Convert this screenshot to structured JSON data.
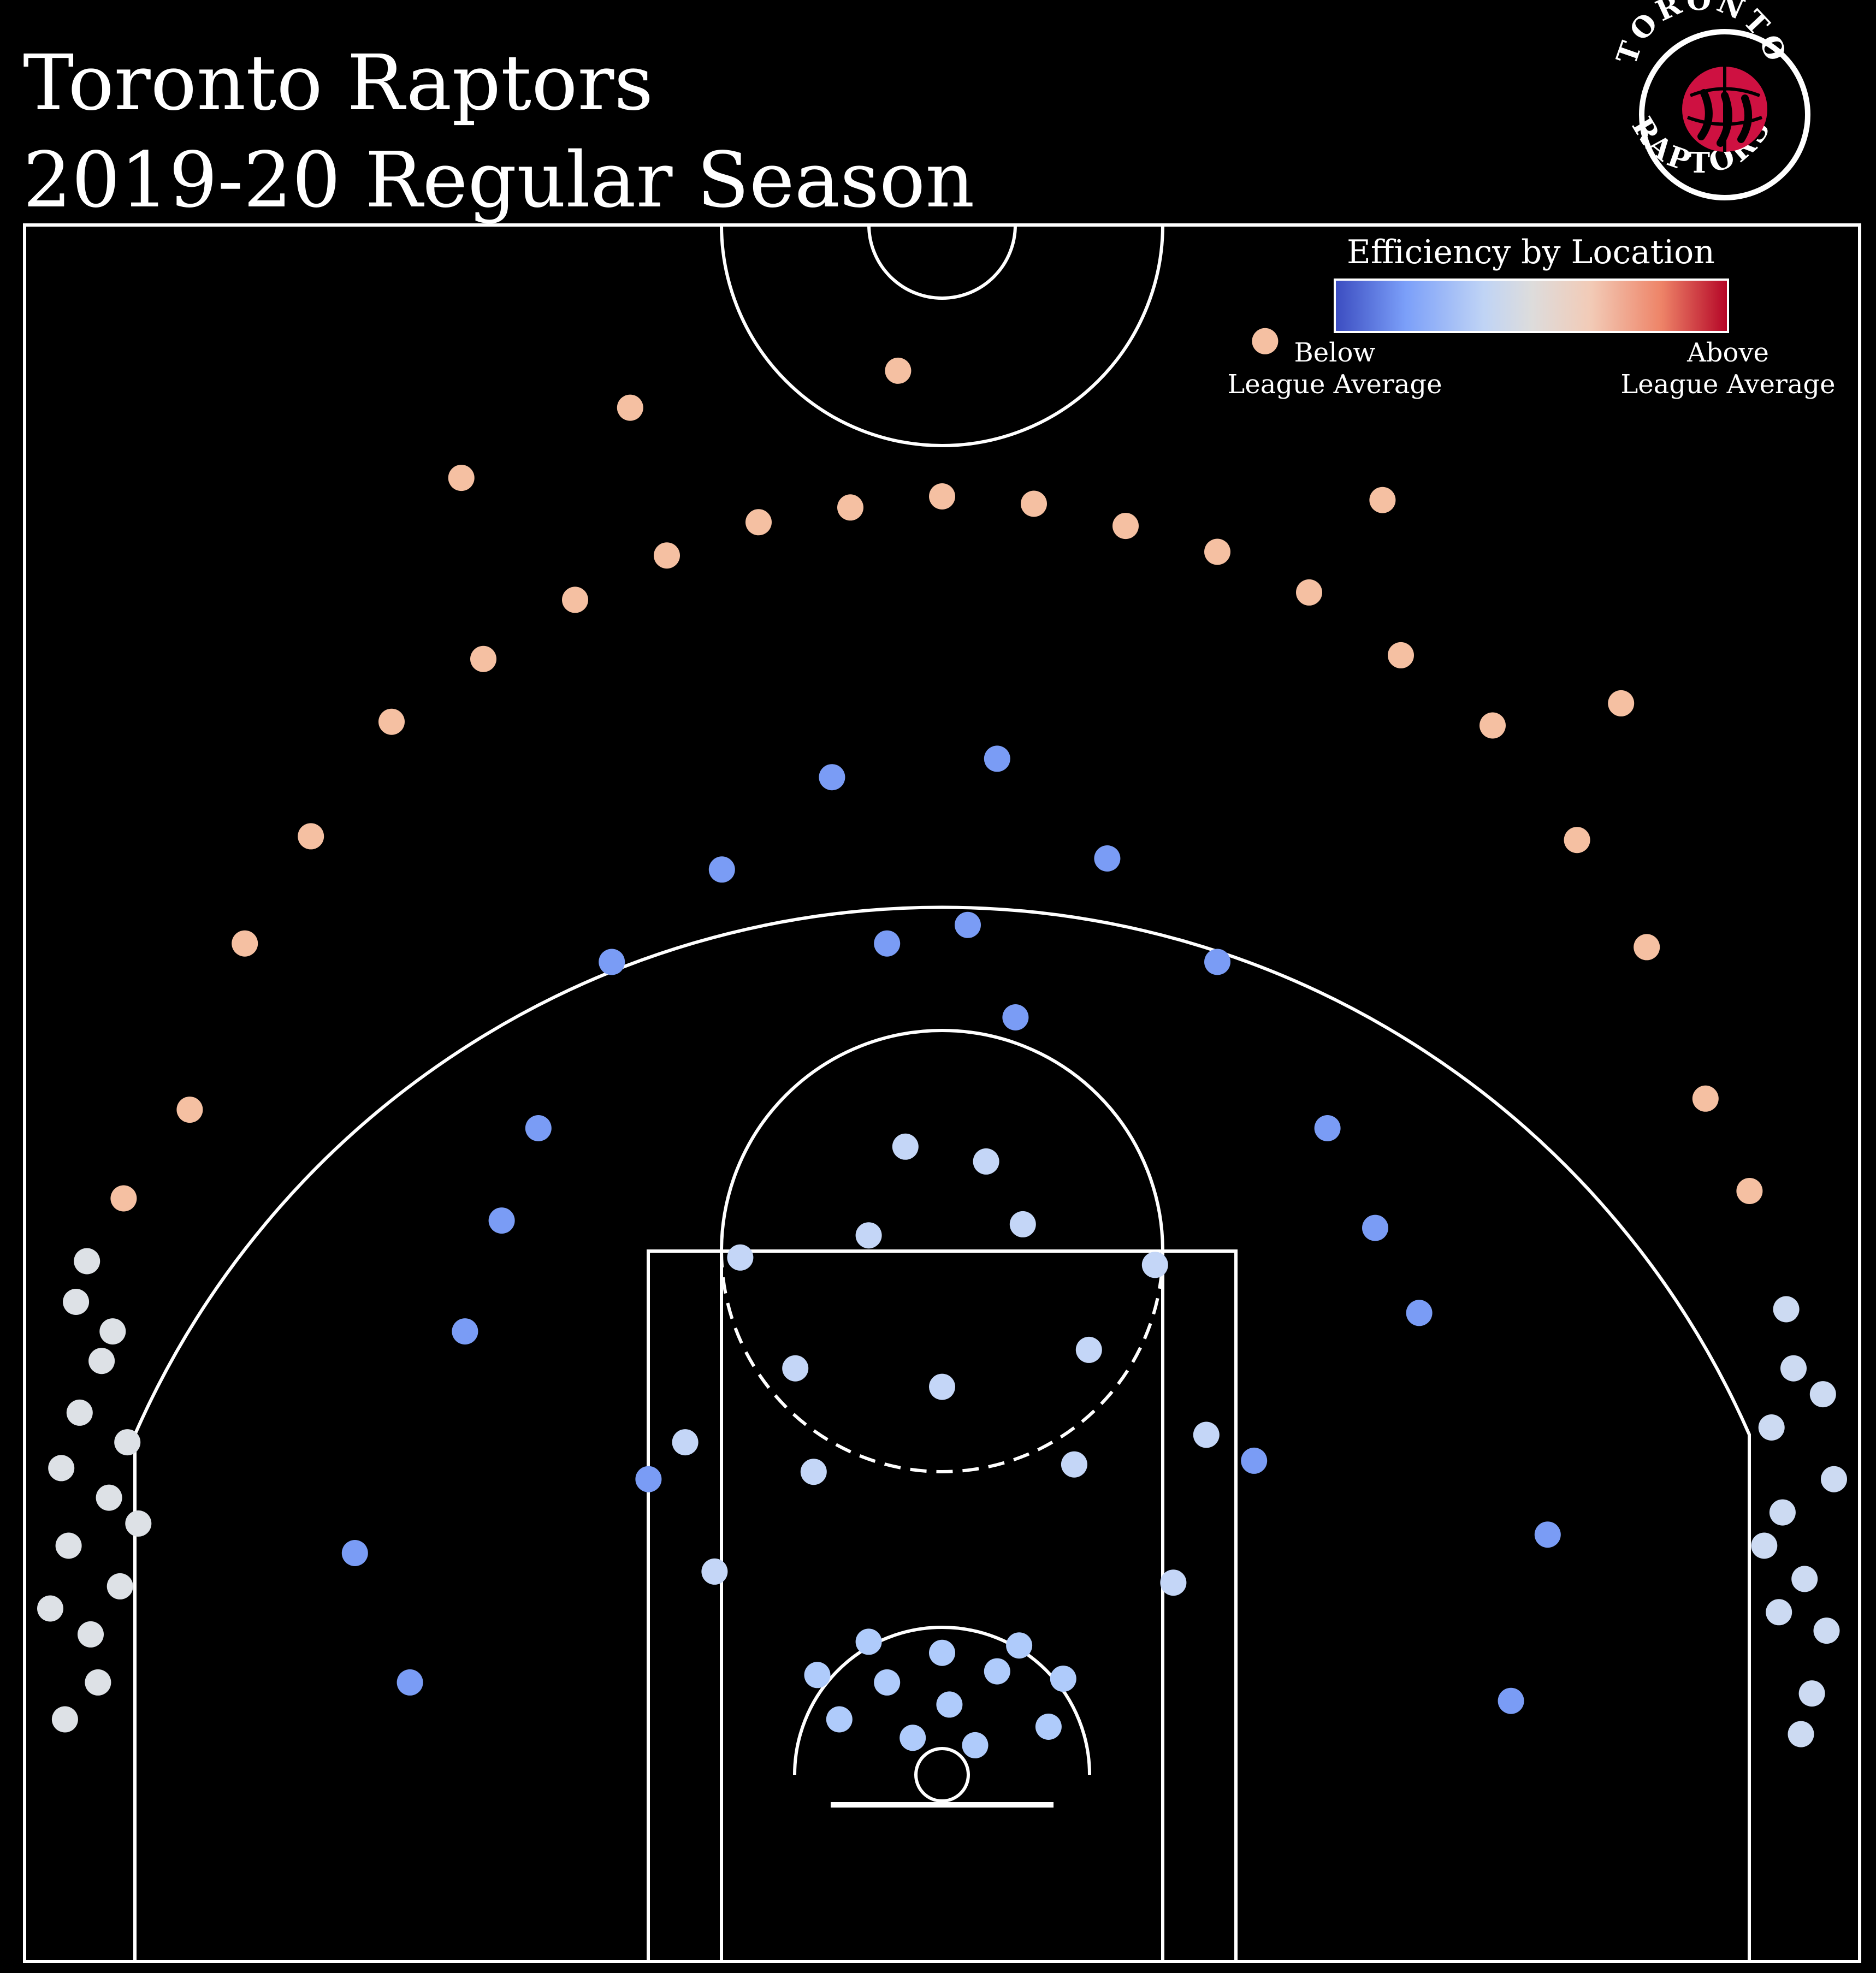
{
  "header": {
    "title": "Toronto Raptors",
    "subtitle": "2019-20 Regular Season"
  },
  "logo": {
    "top_text": "TORONTO",
    "bottom_text": "RAPTORS",
    "icon": "raptors-claw-basketball-icon",
    "colors": {
      "ring": "#000000",
      "ball": "#ce1141",
      "stroke": "#ffffff"
    }
  },
  "legend": {
    "title": "Efficiency by Location",
    "low_label_line1": "Below",
    "low_label_line2": "League Average",
    "high_label_line1": "Above",
    "high_label_line2": "League Average",
    "colormap": [
      "#3b4cc0",
      "#7b9ff9",
      "#c0d4f5",
      "#dddcdc",
      "#f2cbb7",
      "#ee8468",
      "#b40426"
    ]
  },
  "chart_data": {
    "type": "scatter",
    "x_unit": "court position (ft), basket at x=0",
    "y_unit": "distance from baseline (ft)",
    "xlim": [
      -25,
      25
    ],
    "ylim": [
      0,
      47
    ],
    "grid": false,
    "zones": [
      {
        "zone": "left-corner-three",
        "color": "#dde1e6",
        "relative_efficiency": "near-average"
      },
      {
        "zone": "right-corner-three",
        "color": "#ccdaf2",
        "relative_efficiency": "slightly-below"
      },
      {
        "zone": "above-break-three",
        "color": "#f5c0a2",
        "relative_efficiency": "above"
      },
      {
        "zone": "mid-range",
        "color": "#7a9cf5",
        "relative_efficiency": "below"
      },
      {
        "zone": "paint-non-ra",
        "color": "#c4d6f7",
        "relative_efficiency": "below"
      },
      {
        "zone": "restricted-area",
        "color": "#afcbfb",
        "relative_efficiency": "below"
      }
    ],
    "points": [
      {
        "x": -24.3,
        "y": 4.5,
        "zone": "left-corner-three"
      },
      {
        "x": -23.8,
        "y": 6.2,
        "zone": "left-corner-three"
      },
      {
        "x": -23.2,
        "y": 3.8,
        "zone": "left-corner-three"
      },
      {
        "x": -22.7,
        "y": 7.5,
        "zone": "left-corner-three"
      },
      {
        "x": -23.5,
        "y": 9.8,
        "zone": "left-corner-three"
      },
      {
        "x": -22.9,
        "y": 11.2,
        "zone": "left-corner-three"
      },
      {
        "x": -23.6,
        "y": 12.8,
        "zone": "left-corner-three"
      },
      {
        "x": -22.4,
        "y": 5.1,
        "zone": "left-corner-three"
      },
      {
        "x": -24.0,
        "y": 8.3,
        "zone": "left-corner-three"
      },
      {
        "x": -22.2,
        "y": 9.0,
        "zone": "left-corner-three"
      },
      {
        "x": -23.0,
        "y": 2.5,
        "zone": "left-corner-three"
      },
      {
        "x": -22.6,
        "y": 12.0,
        "zone": "left-corner-three"
      },
      {
        "x": -23.9,
        "y": 1.5,
        "zone": "left-corner-three"
      },
      {
        "x": -21.9,
        "y": 6.8,
        "zone": "left-corner-three"
      },
      {
        "x": -23.3,
        "y": 13.9,
        "zone": "left-corner-three"
      },
      {
        "x": 23.5,
        "y": 5.3,
        "zone": "right-corner-three"
      },
      {
        "x": 22.9,
        "y": 7.1,
        "zone": "right-corner-three"
      },
      {
        "x": 24.1,
        "y": 3.9,
        "zone": "right-corner-three"
      },
      {
        "x": 22.6,
        "y": 9.4,
        "zone": "right-corner-three"
      },
      {
        "x": 23.2,
        "y": 11.0,
        "zone": "right-corner-three"
      },
      {
        "x": 24.3,
        "y": 8.0,
        "zone": "right-corner-three"
      },
      {
        "x": 23.7,
        "y": 2.2,
        "zone": "right-corner-three"
      },
      {
        "x": 22.8,
        "y": 4.4,
        "zone": "right-corner-three"
      },
      {
        "x": 23.0,
        "y": 12.6,
        "zone": "right-corner-three"
      },
      {
        "x": 24.0,
        "y": 10.3,
        "zone": "right-corner-three"
      },
      {
        "x": 22.4,
        "y": 6.2,
        "zone": "right-corner-three"
      },
      {
        "x": 23.4,
        "y": 1.1,
        "zone": "right-corner-three"
      },
      {
        "x": -20.5,
        "y": 18.0,
        "zone": "above-break-three"
      },
      {
        "x": -19.0,
        "y": 22.5,
        "zone": "above-break-three"
      },
      {
        "x": -17.2,
        "y": 25.4,
        "zone": "above-break-three"
      },
      {
        "x": -15.0,
        "y": 28.5,
        "zone": "above-break-three"
      },
      {
        "x": -12.5,
        "y": 30.2,
        "zone": "above-break-three"
      },
      {
        "x": -10.0,
        "y": 31.8,
        "zone": "above-break-three"
      },
      {
        "x": -7.5,
        "y": 33.0,
        "zone": "above-break-three"
      },
      {
        "x": -5.0,
        "y": 33.9,
        "zone": "above-break-three"
      },
      {
        "x": -2.5,
        "y": 34.3,
        "zone": "above-break-three"
      },
      {
        "x": 0.0,
        "y": 34.6,
        "zone": "above-break-three"
      },
      {
        "x": 2.5,
        "y": 34.4,
        "zone": "above-break-three"
      },
      {
        "x": 5.0,
        "y": 33.8,
        "zone": "above-break-three"
      },
      {
        "x": 7.5,
        "y": 33.1,
        "zone": "above-break-three"
      },
      {
        "x": 10.0,
        "y": 32.0,
        "zone": "above-break-three"
      },
      {
        "x": 12.5,
        "y": 30.3,
        "zone": "above-break-three"
      },
      {
        "x": 15.0,
        "y": 28.4,
        "zone": "above-break-three"
      },
      {
        "x": 17.3,
        "y": 25.3,
        "zone": "above-break-three"
      },
      {
        "x": 19.2,
        "y": 22.4,
        "zone": "above-break-three"
      },
      {
        "x": 20.8,
        "y": 18.3,
        "zone": "above-break-three"
      },
      {
        "x": 22.0,
        "y": 15.8,
        "zone": "above-break-three"
      },
      {
        "x": -22.3,
        "y": 15.6,
        "zone": "above-break-three"
      },
      {
        "x": -13.1,
        "y": 35.1,
        "zone": "above-break-three"
      },
      {
        "x": -8.5,
        "y": 37.0,
        "zone": "above-break-three"
      },
      {
        "x": -1.2,
        "y": 38.0,
        "zone": "above-break-three"
      },
      {
        "x": 8.8,
        "y": 38.8,
        "zone": "above-break-three"
      },
      {
        "x": 12.0,
        "y": 34.5,
        "zone": "above-break-three"
      },
      {
        "x": 18.5,
        "y": 29.0,
        "zone": "above-break-three"
      },
      {
        "x": -13.0,
        "y": 12.0,
        "zone": "mid-range"
      },
      {
        "x": -11.0,
        "y": 17.5,
        "zone": "mid-range"
      },
      {
        "x": -9.0,
        "y": 22.0,
        "zone": "mid-range"
      },
      {
        "x": -6.0,
        "y": 24.5,
        "zone": "mid-range"
      },
      {
        "x": -3.0,
        "y": 27.0,
        "zone": "mid-range"
      },
      {
        "x": 1.5,
        "y": 27.5,
        "zone": "mid-range"
      },
      {
        "x": 4.5,
        "y": 24.8,
        "zone": "mid-range"
      },
      {
        "x": 7.5,
        "y": 22.0,
        "zone": "mid-range"
      },
      {
        "x": 10.5,
        "y": 17.5,
        "zone": "mid-range"
      },
      {
        "x": 13.0,
        "y": 12.5,
        "zone": "mid-range"
      },
      {
        "x": -16.0,
        "y": 6.0,
        "zone": "mid-range"
      },
      {
        "x": 16.5,
        "y": 6.5,
        "zone": "mid-range"
      },
      {
        "x": -14.5,
        "y": 2.5,
        "zone": "mid-range"
      },
      {
        "x": 15.5,
        "y": 2.0,
        "zone": "mid-range"
      },
      {
        "x": -8.0,
        "y": 8.0,
        "zone": "mid-range"
      },
      {
        "x": 8.5,
        "y": 8.5,
        "zone": "mid-range"
      },
      {
        "x": -12.0,
        "y": 15.0,
        "zone": "mid-range"
      },
      {
        "x": 11.8,
        "y": 14.8,
        "zone": "mid-range"
      },
      {
        "x": -1.5,
        "y": 22.5,
        "zone": "mid-range"
      },
      {
        "x": 2.0,
        "y": 20.5,
        "zone": "mid-range"
      },
      {
        "x": 0.7,
        "y": 23.0,
        "zone": "mid-range"
      },
      {
        "x": -4.0,
        "y": 11.0,
        "zone": "paint-non-ra"
      },
      {
        "x": 4.0,
        "y": 11.5,
        "zone": "paint-non-ra"
      },
      {
        "x": -5.5,
        "y": 14.0,
        "zone": "paint-non-ra"
      },
      {
        "x": 5.8,
        "y": 13.8,
        "zone": "paint-non-ra"
      },
      {
        "x": -2.0,
        "y": 14.6,
        "zone": "paint-non-ra"
      },
      {
        "x": 2.2,
        "y": 14.9,
        "zone": "paint-non-ra"
      },
      {
        "x": -7.0,
        "y": 9.0,
        "zone": "paint-non-ra"
      },
      {
        "x": 7.2,
        "y": 9.2,
        "zone": "paint-non-ra"
      },
      {
        "x": -3.5,
        "y": 8.2,
        "zone": "paint-non-ra"
      },
      {
        "x": 3.6,
        "y": 8.4,
        "zone": "paint-non-ra"
      },
      {
        "x": 0.0,
        "y": 10.5,
        "zone": "paint-non-ra"
      },
      {
        "x": -6.2,
        "y": 5.5,
        "zone": "paint-non-ra"
      },
      {
        "x": 6.3,
        "y": 5.2,
        "zone": "paint-non-ra"
      },
      {
        "x": -1.0,
        "y": 17.0,
        "zone": "paint-non-ra"
      },
      {
        "x": 1.2,
        "y": 16.6,
        "zone": "paint-non-ra"
      },
      {
        "x": -1.5,
        "y": 2.5,
        "zone": "restricted-area"
      },
      {
        "x": 1.5,
        "y": 2.8,
        "zone": "restricted-area"
      },
      {
        "x": -2.8,
        "y": 1.5,
        "zone": "restricted-area"
      },
      {
        "x": 2.9,
        "y": 1.3,
        "zone": "restricted-area"
      },
      {
        "x": 0.0,
        "y": 3.3,
        "zone": "restricted-area"
      },
      {
        "x": -2.0,
        "y": 3.6,
        "zone": "restricted-area"
      },
      {
        "x": 2.1,
        "y": 3.5,
        "zone": "restricted-area"
      },
      {
        "x": -0.8,
        "y": 1.0,
        "zone": "restricted-area"
      },
      {
        "x": 0.9,
        "y": 0.8,
        "zone": "restricted-area"
      },
      {
        "x": -3.4,
        "y": 2.7,
        "zone": "restricted-area"
      },
      {
        "x": 3.3,
        "y": 2.6,
        "zone": "restricted-area"
      },
      {
        "x": 0.2,
        "y": 1.9,
        "zone": "restricted-area"
      }
    ]
  }
}
